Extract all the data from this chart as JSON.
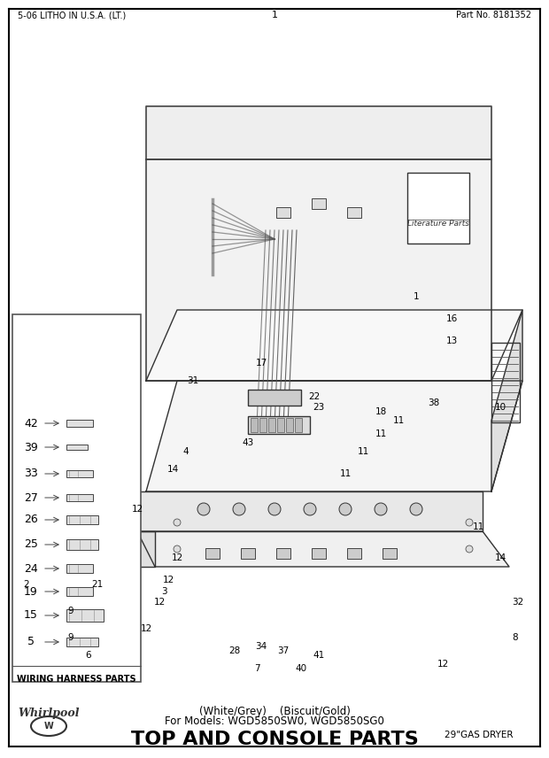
{
  "title": "TOP AND CONSOLE PARTS",
  "subtitle_line1": "For Models: WGD5850SW0, WGD5850SG0",
  "subtitle_line2": "(White/Grey)    (Biscuit/Gold)",
  "top_right_text": "29\"GAS DRYER",
  "bottom_left_text": "5-06 LITHO IN U.S.A. (LT.)",
  "bottom_center_text": "1",
  "bottom_right_text": "Part No. 8181352",
  "wiring_box_title": "WIRING HARNESS PARTS",
  "wiring_parts": [
    "5",
    "15",
    "19",
    "24",
    "25",
    "26",
    "27",
    "33",
    "39",
    "42"
  ],
  "bg_color": "#ffffff",
  "border_color": "#000000",
  "text_color": "#000000",
  "figwidth": 6.2,
  "figheight": 8.56,
  "dpi": 100
}
